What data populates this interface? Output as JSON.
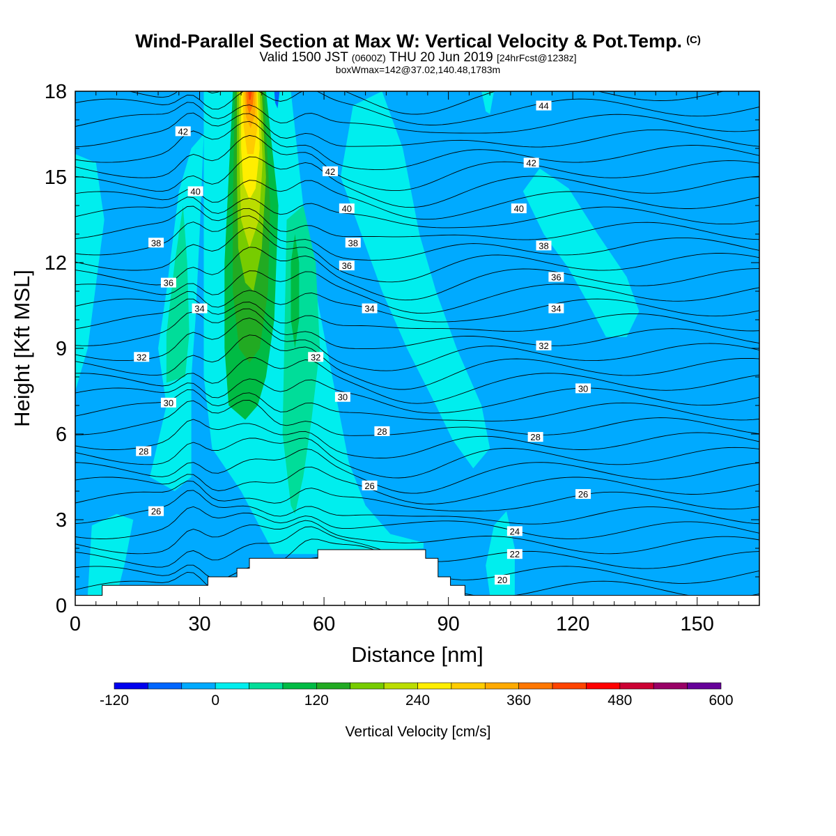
{
  "title": {
    "main": "Wind-Parallel Section at Max W: Vertical Velocity & Pot.Temp.",
    "mark": "(C)",
    "valid_a": "Valid 1500 JST",
    "valid_b": "(0600Z)",
    "valid_c": "THU 20 Jun 2019",
    "valid_d": "[24hrFcst@1238z]",
    "box": "boxWmax=142@37.02,140.48,1783m"
  },
  "chart_data": {
    "type": "heatmap",
    "xlabel": "Distance [nm]",
    "ylabel": "Height [Kft MSL]",
    "xlim": [
      0,
      165
    ],
    "ylim": [
      0,
      18
    ],
    "x_ticks": [
      0,
      30,
      60,
      90,
      120,
      150
    ],
    "y_ticks": [
      0,
      3,
      6,
      9,
      12,
      15,
      18
    ],
    "colorbar": {
      "label": "Vertical Velocity [cm/s]",
      "ticks": [
        -120,
        0,
        120,
        240,
        360,
        480,
        600
      ],
      "levels": [
        -120,
        -80,
        -40,
        0,
        40,
        80,
        120,
        160,
        200,
        240,
        280,
        320,
        360,
        400,
        440,
        480,
        520,
        560,
        600
      ],
      "colors": [
        "#0000ee",
        "#0066ff",
        "#00aaff",
        "#00eeee",
        "#00dd99",
        "#00bb44",
        "#22aa22",
        "#77cc00",
        "#bbdd00",
        "#ffee00",
        "#ffcc00",
        "#ffaa00",
        "#ff7700",
        "#ff4400",
        "#ff0000",
        "#cc0033",
        "#990066",
        "#660099"
      ]
    },
    "background_value_range": "-40 to 0",
    "updrafts": [
      {
        "x_center": 42,
        "z_base": 6.5,
        "peak_cm_s": 360,
        "peak_height": 18
      },
      {
        "x_center": 54,
        "z_base": 3.0,
        "peak_cm_s": 120,
        "peak_height": 12
      },
      {
        "x_center": 26,
        "z_base": 6.5,
        "peak_cm_s": 80,
        "peak_height": 13
      }
    ],
    "theta_contours": {
      "units": "label",
      "labels": [
        {
          "text": "42",
          "x": 26,
          "z": 16.6
        },
        {
          "text": "40",
          "x": 29,
          "z": 14.5
        },
        {
          "text": "38",
          "x": 19.5,
          "z": 12.7
        },
        {
          "text": "36",
          "x": 22.5,
          "z": 11.3
        },
        {
          "text": "34",
          "x": 30,
          "z": 10.4
        },
        {
          "text": "32",
          "x": 16,
          "z": 8.7
        },
        {
          "text": "30",
          "x": 22.5,
          "z": 7.1
        },
        {
          "text": "28",
          "x": 16.5,
          "z": 5.4
        },
        {
          "text": "26",
          "x": 19.5,
          "z": 3.3
        },
        {
          "text": "42",
          "x": 61.5,
          "z": 15.2
        },
        {
          "text": "40",
          "x": 65.5,
          "z": 13.9
        },
        {
          "text": "38",
          "x": 67,
          "z": 12.7
        },
        {
          "text": "36",
          "x": 65.5,
          "z": 11.9
        },
        {
          "text": "34",
          "x": 71,
          "z": 10.4
        },
        {
          "text": "32",
          "x": 58,
          "z": 8.7
        },
        {
          "text": "30",
          "x": 64.5,
          "z": 7.3
        },
        {
          "text": "28",
          "x": 74,
          "z": 6.1
        },
        {
          "text": "26",
          "x": 71,
          "z": 4.2
        },
        {
          "text": "44",
          "x": 113,
          "z": 17.5
        },
        {
          "text": "42",
          "x": 110,
          "z": 15.5
        },
        {
          "text": "40",
          "x": 107,
          "z": 13.9
        },
        {
          "text": "38",
          "x": 113,
          "z": 12.6
        },
        {
          "text": "36",
          "x": 116,
          "z": 11.5
        },
        {
          "text": "34",
          "x": 116,
          "z": 10.4
        },
        {
          "text": "32",
          "x": 113,
          "z": 9.1
        },
        {
          "text": "30",
          "x": 122.5,
          "z": 7.6
        },
        {
          "text": "28",
          "x": 111,
          "z": 5.9
        },
        {
          "text": "26",
          "x": 122.5,
          "z": 3.9
        },
        {
          "text": "24",
          "x": 106,
          "z": 2.6
        },
        {
          "text": "22",
          "x": 106,
          "z": 1.8
        },
        {
          "text": "20",
          "x": 103,
          "z": 0.9
        }
      ]
    },
    "terrain_kft": [
      [
        0,
        0.35
      ],
      [
        6.5,
        0.35
      ],
      [
        6.5,
        0.7
      ],
      [
        32,
        0.7
      ],
      [
        32,
        1.0
      ],
      [
        39,
        1.0
      ],
      [
        39,
        1.3
      ],
      [
        42,
        1.3
      ],
      [
        42,
        1.65
      ],
      [
        58.5,
        1.65
      ],
      [
        58.5,
        1.95
      ],
      [
        84.5,
        1.95
      ],
      [
        84.5,
        1.65
      ],
      [
        87.5,
        1.65
      ],
      [
        87.5,
        1.0
      ],
      [
        90.5,
        1.0
      ],
      [
        90.5,
        0.7
      ],
      [
        94,
        0.7
      ],
      [
        94,
        0.35
      ],
      [
        165,
        0.35
      ]
    ]
  }
}
